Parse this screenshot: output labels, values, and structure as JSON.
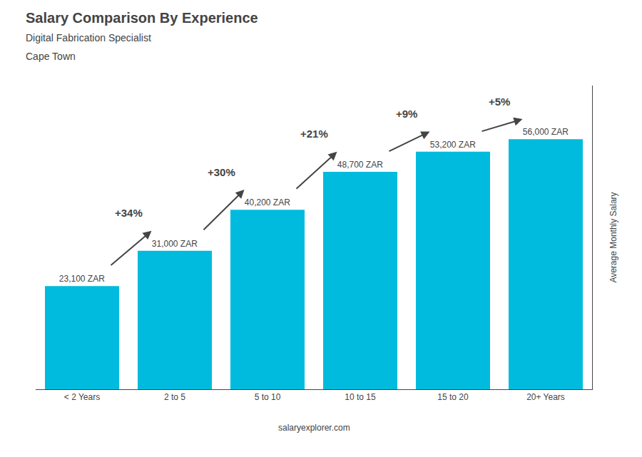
{
  "chart_data": {
    "type": "bar",
    "title": "Salary Comparison By Experience",
    "subtitle": [
      "Digital Fabrication Specialist",
      "Cape Town"
    ],
    "ylabel": "Average Monthly Salary",
    "source": "salaryexplorer.com",
    "categories": [
      "< 2 Years",
      "2 to 5",
      "5 to 10",
      "10 to 15",
      "15 to 20",
      "20+ Years"
    ],
    "values": [
      23100,
      31000,
      40200,
      48700,
      53200,
      56000
    ],
    "value_labels": [
      "23,100 ZAR",
      "31,000 ZAR",
      "40,200 ZAR",
      "48,700 ZAR",
      "53,200 ZAR",
      "56,000 ZAR"
    ],
    "data_labels": true,
    "annotations": [
      "+34%",
      "+30%",
      "+21%",
      "+9%",
      "+5%"
    ],
    "color": "#00BBDD",
    "ylim": [
      0,
      68000
    ],
    "grid": false,
    "tick_labels": "x"
  }
}
